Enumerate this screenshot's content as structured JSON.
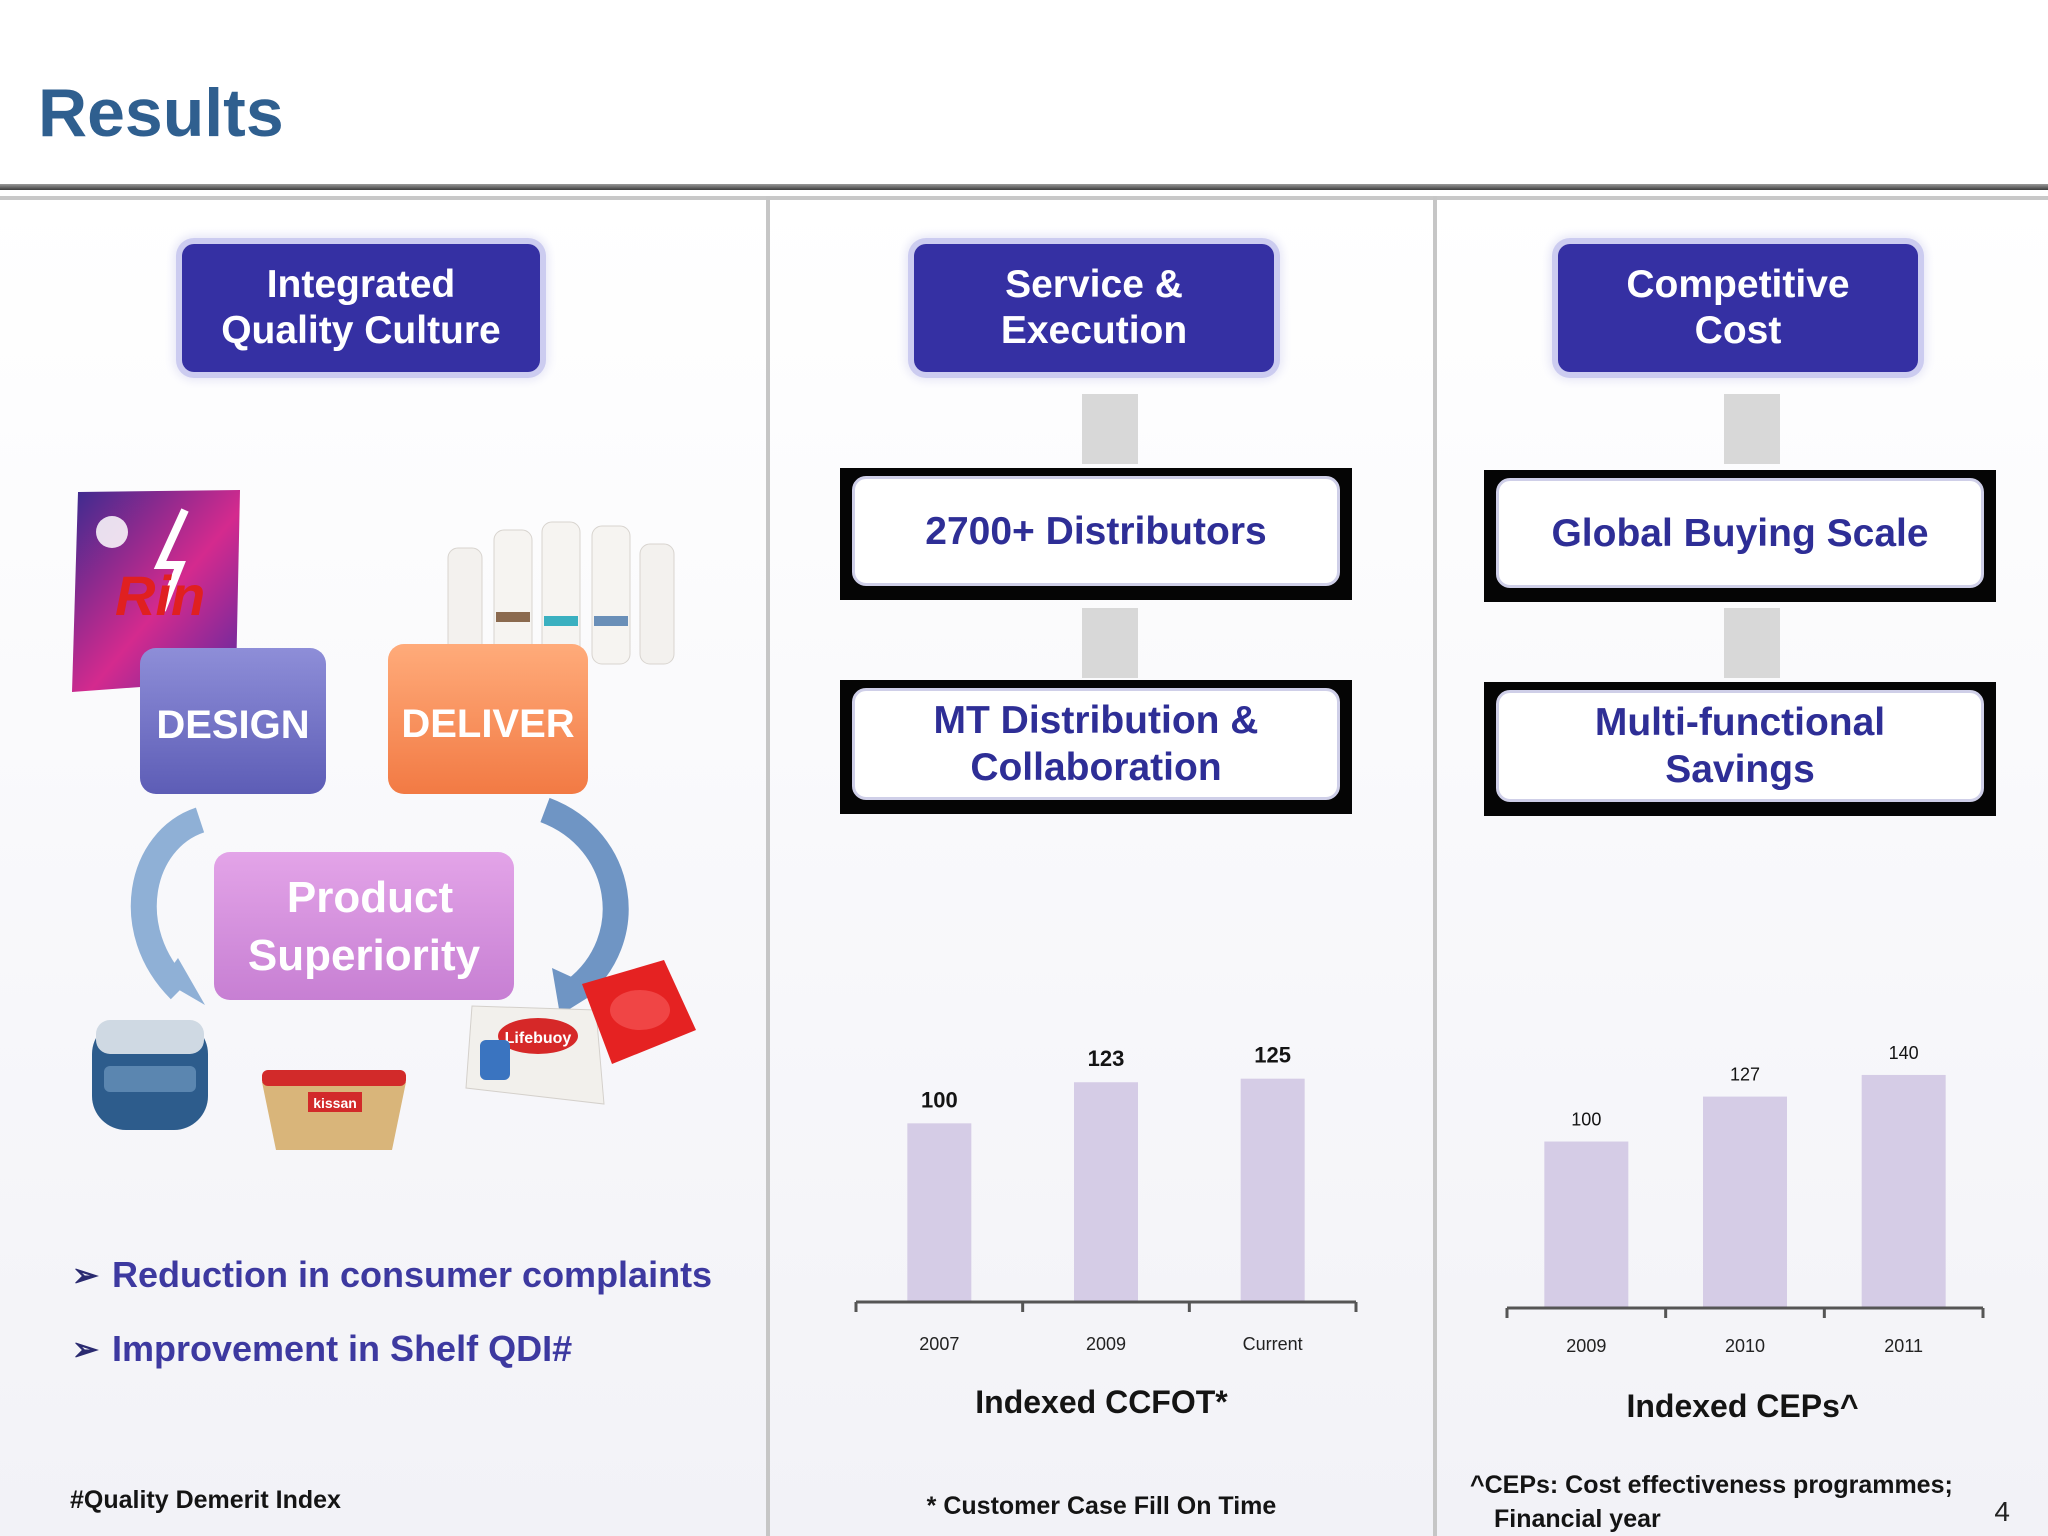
{
  "slide": {
    "title": "Results",
    "page_number": "4"
  },
  "columns": {
    "quality": {
      "header": "Integrated Quality Culture",
      "header_lines": [
        "Integrated",
        "Quality Culture"
      ],
      "cycle": {
        "design": "DESIGN",
        "deliver": "DELIVER",
        "center_lines": [
          "Product",
          "Superiority"
        ]
      },
      "product_labels": {
        "rin": "Rin",
        "lifebuoy": "Lifebuoy",
        "kissan": "kissan"
      },
      "bullets": [
        "Reduction in consumer complaints",
        "Improvement in Shelf QDI#"
      ],
      "footnote": "#Quality Demerit Index"
    },
    "service": {
      "header_lines": [
        "Service &",
        "Execution"
      ],
      "boxes": [
        [
          "2700+ Distributors"
        ],
        [
          "MT Distribution &",
          "Collaboration"
        ]
      ],
      "chart_title": "Indexed CCFOT*",
      "footnote": "* Customer Case Fill On Time"
    },
    "cost": {
      "header_lines": [
        "Competitive",
        "Cost"
      ],
      "boxes": [
        [
          "Global Buying Scale"
        ],
        [
          "Multi-functional",
          "Savings"
        ]
      ],
      "chart_title": "Indexed CEPs^",
      "footnote_lines": [
        "^CEPs: Cost effectiveness programmes;",
        "Financial year"
      ]
    }
  },
  "chart_data": [
    {
      "type": "bar",
      "title": "Indexed CCFOT*",
      "categories": [
        "2007",
        "2009",
        "Current"
      ],
      "values": [
        100,
        123,
        125
      ],
      "ylim": [
        0,
        150
      ],
      "grid": false,
      "bar_color": "#d5cce6"
    },
    {
      "type": "bar",
      "title": "Indexed CEPs^",
      "categories": [
        "2009",
        "2010",
        "2011"
      ],
      "values": [
        100,
        127,
        140
      ],
      "ylim": [
        0,
        170
      ],
      "grid": false,
      "bar_color": "#d5cce6"
    }
  ],
  "colors": {
    "title": "#2f5f8f",
    "header_fill": "#3530a3",
    "box_text": "#2e2e96",
    "bullet_text": "#3d39a0"
  }
}
